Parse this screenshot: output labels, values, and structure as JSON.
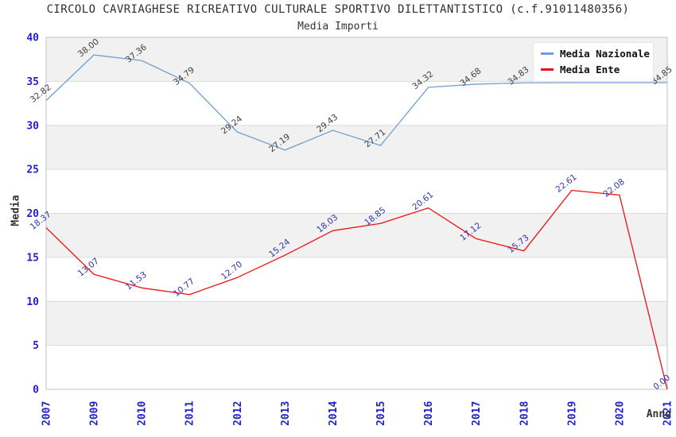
{
  "chart_data": {
    "type": "line",
    "title": "CIRCOLO CAVRIAGHESE RICREATIVO CULTURALE SPORTIVO DILETTANTISTICO (c.f.91011480356)",
    "subtitle": "Media Importi",
    "xlabel": "Anno",
    "ylabel": "Media",
    "categories": [
      "2007",
      "2009",
      "2010",
      "2011",
      "2012",
      "2013",
      "2014",
      "2015",
      "2016",
      "2017",
      "2018",
      "2019",
      "2020",
      "2021"
    ],
    "series": [
      {
        "name": "Media Nazionale",
        "color": "#6f9fd4",
        "label_color": "#3f3f3f",
        "values": [
          32.82,
          38.0,
          37.36,
          34.79,
          29.24,
          27.19,
          29.43,
          27.71,
          34.32,
          34.68,
          34.83,
          34.85,
          34.85,
          34.85
        ],
        "point_labels": [
          "32.82",
          "38.00",
          "37.36",
          "34.79",
          "29.24",
          "27.19",
          "29.43",
          "27.71",
          "34.32",
          "34.68",
          "34.83",
          "",
          "",
          "34.85"
        ]
      },
      {
        "name": "Media Ente",
        "color": "#ee1111",
        "label_color": "#3333b0",
        "values": [
          18.37,
          13.07,
          11.53,
          10.77,
          12.7,
          15.24,
          18.03,
          18.85,
          20.61,
          17.12,
          15.73,
          22.61,
          22.08,
          0.0
        ],
        "point_labels": [
          "18.37",
          "13.07",
          "11.53",
          "10.77",
          "12.70",
          "15.24",
          "18.03",
          "18.85",
          "20.61",
          "17.12",
          "15.73",
          "22.61",
          "22.08",
          "0.00"
        ]
      }
    ],
    "ylim": [
      0,
      40
    ],
    "ytick_step": 5,
    "grid": true,
    "band_color": "#f1f1f1",
    "grid_color": "#dcdcdc",
    "border_color": "#c3c3c3",
    "tick_color": "#2222cc",
    "legend_position": "top-right"
  }
}
